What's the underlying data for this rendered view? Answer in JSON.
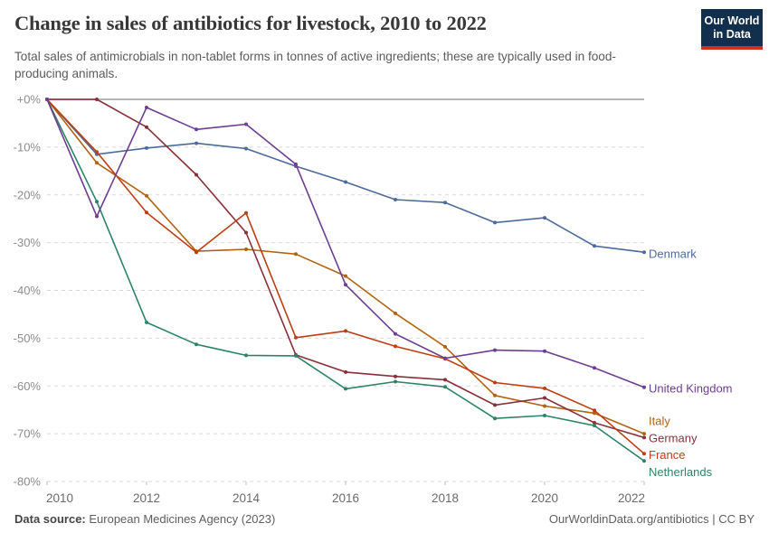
{
  "header": {
    "title": "Change in sales of antibiotics for livestock, 2010 to 2022",
    "subtitle": "Total sales of antimicrobials in non-tablet forms in tonnes of active ingredients; these are typically used in food-producing animals."
  },
  "logo": {
    "line1": "Our World",
    "line2": "in Data"
  },
  "chart_data": {
    "type": "line",
    "x": [
      2010,
      2011,
      2012,
      2013,
      2014,
      2015,
      2016,
      2017,
      2018,
      2019,
      2020,
      2021,
      2022
    ],
    "xticks": [
      2010,
      2012,
      2014,
      2016,
      2018,
      2020,
      2022
    ],
    "ylim": [
      -80,
      0
    ],
    "yticks": [
      {
        "value": 0,
        "label": "+0%"
      },
      {
        "value": -10,
        "label": "-10%"
      },
      {
        "value": -20,
        "label": "-20%"
      },
      {
        "value": -30,
        "label": "-30%"
      },
      {
        "value": -40,
        "label": "-40%"
      },
      {
        "value": -50,
        "label": "-50%"
      },
      {
        "value": -60,
        "label": "-60%"
      },
      {
        "value": -70,
        "label": "-70%"
      },
      {
        "value": -80,
        "label": "-80%"
      }
    ],
    "grid": true,
    "legend_position": "right-of-line-ends",
    "unit": "%",
    "series": [
      {
        "name": "Denmark",
        "color": "#4C6A9C",
        "label_y": -32.3,
        "values": [
          0,
          -11.5,
          -10.2,
          -9.2,
          -10.3,
          -14.0,
          -17.3,
          -21.0,
          -21.6,
          -25.8,
          -24.8,
          -30.7,
          -32.0
        ]
      },
      {
        "name": "Italy",
        "color": "#B16214",
        "label_y": -67.3,
        "values": [
          0,
          -13.3,
          -20.2,
          -31.8,
          -31.4,
          -32.4,
          -37.0,
          -44.8,
          -51.8,
          -62.0,
          -64.2,
          -65.7,
          -70.0
        ]
      },
      {
        "name": "Germany",
        "color": "#883039",
        "label_y": -70.9,
        "values": [
          0,
          0,
          -5.8,
          -15.8,
          -27.9,
          -53.5,
          -57.1,
          -58.0,
          -58.7,
          -64.0,
          -62.5,
          -67.7,
          -70.8
        ]
      },
      {
        "name": "France",
        "color": "#BC3E14",
        "label_y": -74.4,
        "values": [
          0,
          -11.0,
          -23.7,
          -32.0,
          -23.8,
          -49.9,
          -48.5,
          -51.7,
          -54.3,
          -59.3,
          -60.5,
          -65.1,
          -74.2
        ]
      },
      {
        "name": "Netherlands",
        "color": "#2C8465",
        "label_y": -78.0,
        "values": [
          0,
          -21.4,
          -46.7,
          -51.3,
          -53.6,
          -53.7,
          -60.6,
          -59.1,
          -60.2,
          -66.8,
          -66.2,
          -68.3,
          -75.7
        ]
      },
      {
        "name": "United Kingdom",
        "color": "#6D3E91",
        "label_y": -60.5,
        "values": [
          0,
          -24.5,
          -1.7,
          -6.3,
          -5.2,
          -13.6,
          -38.8,
          -49.1,
          -54.2,
          -52.5,
          -52.7,
          -56.2,
          -60.3
        ]
      }
    ]
  },
  "footer": {
    "source_label": "Data source:",
    "source_value": " European Medicines Agency (2023)",
    "credit": "OurWorldinData.org/antibiotics | CC BY"
  }
}
